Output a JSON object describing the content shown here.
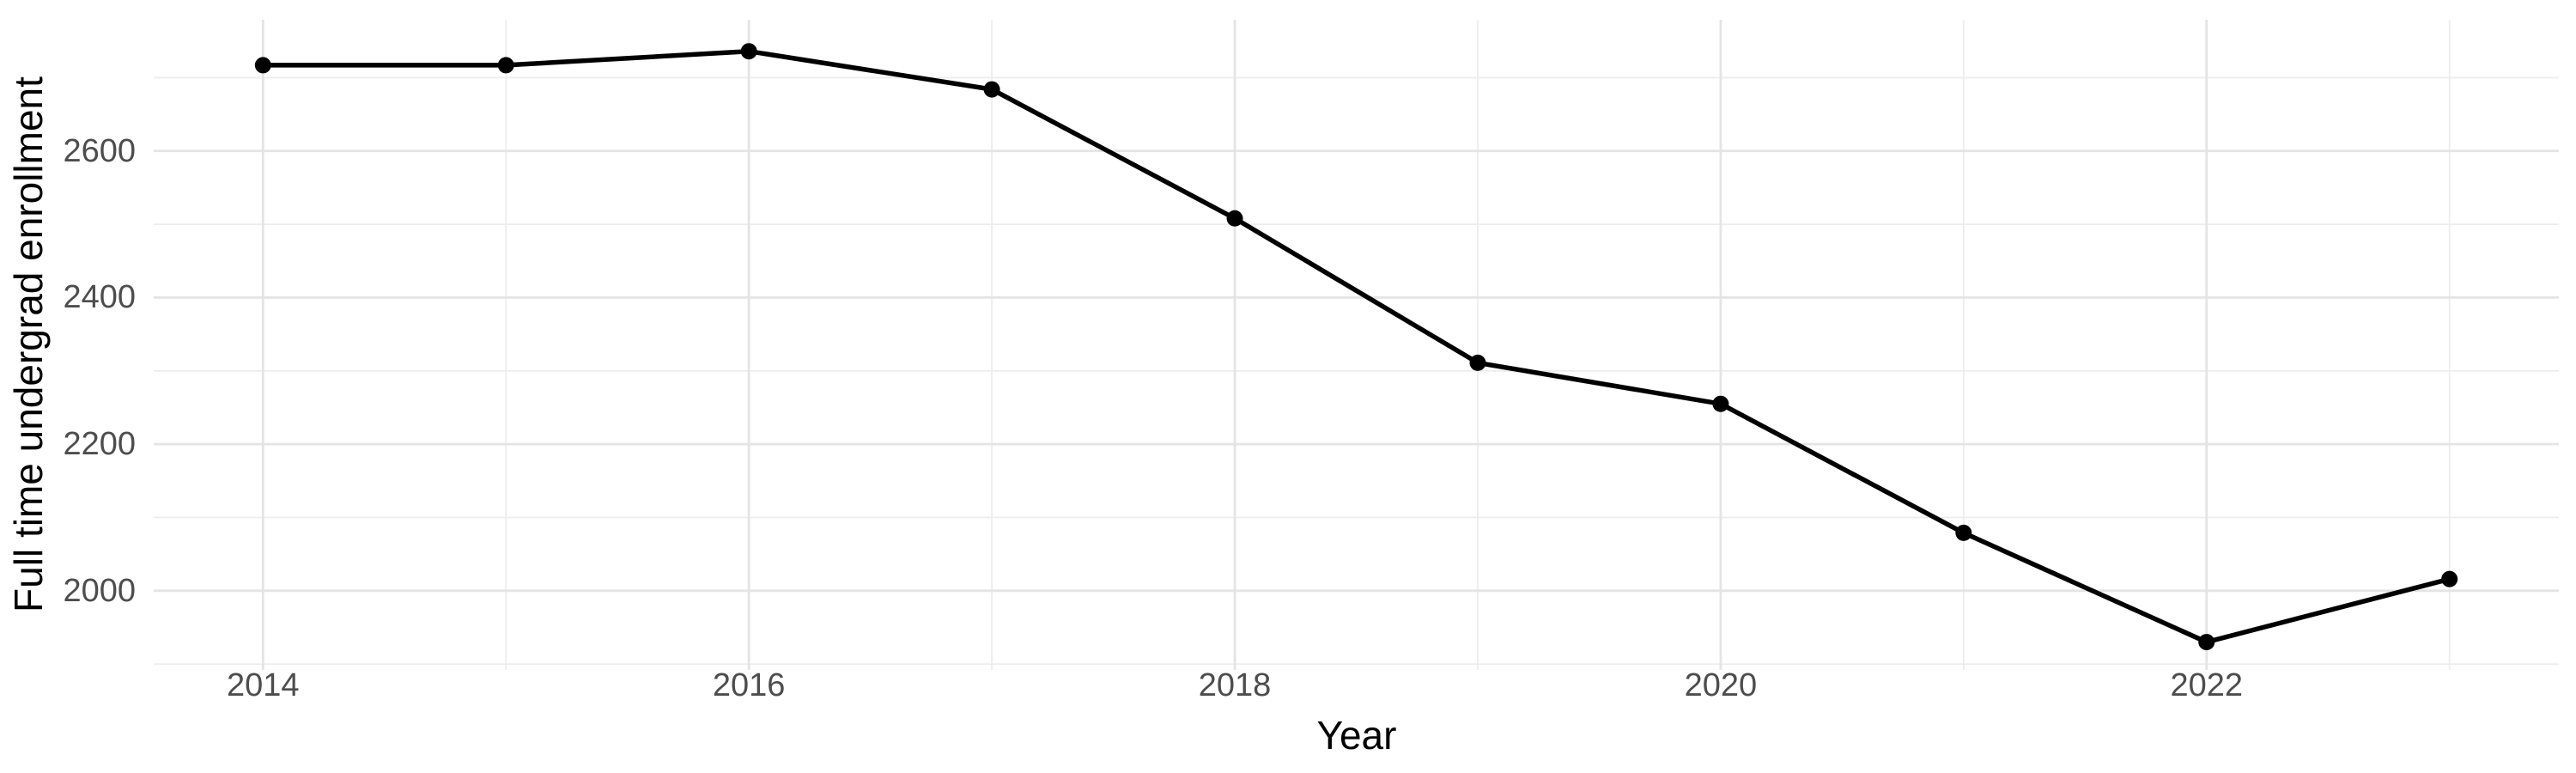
{
  "chart_data": {
    "type": "line",
    "title": "",
    "xlabel": "Year",
    "ylabel": "Full time undergrad enrollment",
    "x": [
      2014,
      2015,
      2016,
      2017,
      2018,
      2019,
      2020,
      2021,
      2022,
      2023
    ],
    "series": [
      {
        "name": "Full time undergrad enrollment",
        "values": [
          2717,
          2717,
          2736,
          2684,
          2508,
          2311,
          2255,
          2079,
          1930,
          2016
        ]
      }
    ],
    "x_tick_labels": [
      "2014",
      "2016",
      "2018",
      "2020",
      "2022"
    ],
    "x_minor_breaks": [
      2015,
      2017,
      2019,
      2021,
      2023
    ],
    "y_tick_labels": [
      "2000",
      "2200",
      "2400",
      "2600"
    ],
    "y_minor_breaks": [
      1900,
      2100,
      2300,
      2500,
      2700
    ],
    "xlim": [
      2013.55,
      2023.45
    ],
    "ylim": [
      1892,
      2779
    ],
    "grid": "major and minor, no axis lines, no ticks",
    "legend_position": "none",
    "colors": {
      "line": "#000000",
      "point": "#000000",
      "grid_major": "#e4e4e4",
      "grid_minor": "#ededed",
      "tick_text": "#4d4d4d",
      "axis_title_text": "#000000",
      "background": "#ffffff"
    }
  }
}
